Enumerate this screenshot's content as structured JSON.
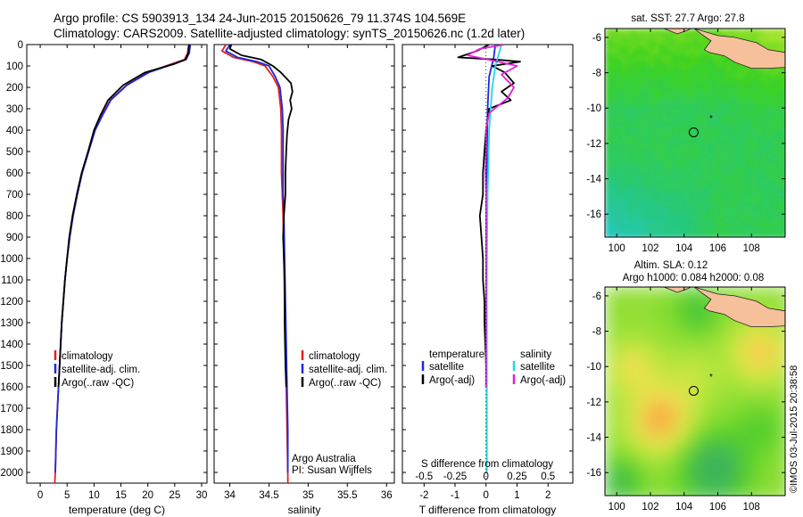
{
  "header": {
    "line1": "Argo profile: CS 5903913_134 24-Jun-2015 20150626_79 11.374S 104.569E",
    "line2": "Climatology: CARS2009. Satellite-adjusted climatology: synTS_20150626.nc (1.2d later)"
  },
  "credit": "©IMOS 03-Jul-2015 20:38:58",
  "colors": {
    "climatology": "#e0201c",
    "satellite": "#1c28e0",
    "argo": "#000000",
    "sat_salinity": "#22d8e8",
    "argo_salinity": "#e020d8",
    "land": "#f5c09a"
  },
  "chart_data": [
    {
      "type": "line",
      "xlabel": "temperature (deg C)",
      "ylabel": "",
      "xlim": [
        -2.5,
        31
      ],
      "ylim": [
        2050,
        0
      ],
      "xticks": [
        0,
        5,
        10,
        15,
        20,
        25,
        30
      ],
      "yticks": [
        0,
        100,
        200,
        300,
        400,
        500,
        600,
        700,
        800,
        900,
        1000,
        1100,
        1200,
        1300,
        1400,
        1500,
        1600,
        1700,
        1800,
        1900,
        2000
      ],
      "legend": [
        "climatology",
        "satellite-adj. clim.",
        "Argo(..raw -QC)"
      ],
      "legend_position": "lower-right",
      "series": [
        {
          "name": "climatology",
          "color": "#e0201c",
          "points": [
            [
              27.6,
              0
            ],
            [
              27.4,
              40
            ],
            [
              26.8,
              70
            ],
            [
              24.5,
              90
            ],
            [
              20,
              130
            ],
            [
              16,
              190
            ],
            [
              13,
              260
            ],
            [
              11.5,
              330
            ],
            [
              10.2,
              400
            ],
            [
              9,
              500
            ],
            [
              7.8,
              600
            ],
            [
              6.9,
              700
            ],
            [
              6.1,
              800
            ],
            [
              5.5,
              900
            ],
            [
              5,
              1000
            ],
            [
              4.6,
              1100
            ],
            [
              4.3,
              1200
            ],
            [
              4,
              1300
            ],
            [
              3.8,
              1400
            ],
            [
              3.6,
              1500
            ],
            [
              3.4,
              1600
            ],
            [
              3.2,
              1700
            ],
            [
              3.0,
              1800
            ],
            [
              2.9,
              1900
            ],
            [
              2.8,
              2000
            ],
            [
              2.7,
              2050
            ]
          ]
        },
        {
          "name": "satellite-adj. clim.",
          "color": "#1c28e0",
          "points": [
            [
              27.9,
              0
            ],
            [
              27.7,
              40
            ],
            [
              27.1,
              70
            ],
            [
              24.8,
              90
            ],
            [
              20.2,
              130
            ],
            [
              16.1,
              190
            ],
            [
              13.1,
              260
            ],
            [
              11.6,
              330
            ],
            [
              10.2,
              400
            ],
            [
              9,
              500
            ],
            [
              7.8,
              600
            ],
            [
              6.9,
              700
            ],
            [
              6.1,
              800
            ],
            [
              5.5,
              900
            ],
            [
              5,
              1000
            ],
            [
              4.6,
              1100
            ],
            [
              4.3,
              1200
            ],
            [
              4,
              1300
            ],
            [
              3.8,
              1400
            ],
            [
              3.6,
              1500
            ],
            [
              3.4,
              1600
            ],
            [
              3.2,
              1700
            ],
            [
              3.0,
              1800
            ],
            [
              2.9,
              1900
            ],
            [
              2.8,
              2000
            ]
          ]
        },
        {
          "name": "Argo(..raw -QC)",
          "color": "#000000",
          "points": [
            [
              27.7,
              0
            ],
            [
              27.5,
              40
            ],
            [
              27,
              70
            ],
            [
              25,
              90
            ],
            [
              19.5,
              130
            ],
            [
              15.4,
              190
            ],
            [
              12.6,
              260
            ],
            [
              11.2,
              330
            ],
            [
              10,
              400
            ],
            [
              8.9,
              500
            ],
            [
              7.7,
              600
            ],
            [
              6.8,
              700
            ],
            [
              6,
              800
            ],
            [
              5.4,
              900
            ],
            [
              5,
              1000
            ],
            [
              4.6,
              1100
            ],
            [
              4.3,
              1200
            ],
            [
              4,
              1300
            ],
            [
              3.8,
              1400
            ],
            [
              3.6,
              1500
            ],
            [
              3.4,
              1600
            ]
          ]
        }
      ]
    },
    {
      "type": "line",
      "xlabel": "salinity",
      "ylabel": "",
      "xlim": [
        33.8,
        36.1
      ],
      "ylim": [
        2050,
        0
      ],
      "xticks": [
        34,
        34.5,
        35,
        35.5,
        36
      ],
      "legend": [
        "climatology",
        "satellite-adj. clim.",
        "Argo(..raw -QC)"
      ],
      "legend_position": "lower-right",
      "annotation": [
        "Argo Australia",
        "PI: Susan Wijffels"
      ],
      "series": [
        {
          "name": "climatology",
          "color": "#e0201c",
          "points": [
            [
              33.95,
              0
            ],
            [
              33.9,
              30
            ],
            [
              34.05,
              60
            ],
            [
              34.3,
              80
            ],
            [
              34.45,
              100
            ],
            [
              34.55,
              150
            ],
            [
              34.62,
              200
            ],
            [
              34.65,
              300
            ],
            [
              34.66,
              400
            ],
            [
              34.66,
              500
            ],
            [
              34.66,
              600
            ],
            [
              34.67,
              700
            ],
            [
              34.68,
              800
            ],
            [
              34.69,
              1000
            ],
            [
              34.7,
              1200
            ],
            [
              34.71,
              1400
            ],
            [
              34.72,
              1600
            ],
            [
              34.73,
              1800
            ],
            [
              34.74,
              2000
            ],
            [
              34.74,
              2050
            ]
          ]
        },
        {
          "name": "satellite-adj. clim.",
          "color": "#1c28e0",
          "points": [
            [
              34.0,
              0
            ],
            [
              33.95,
              30
            ],
            [
              34.1,
              60
            ],
            [
              34.35,
              80
            ],
            [
              34.5,
              100
            ],
            [
              34.58,
              150
            ],
            [
              34.64,
              200
            ],
            [
              34.67,
              300
            ],
            [
              34.68,
              400
            ],
            [
              34.68,
              500
            ],
            [
              34.68,
              600
            ],
            [
              34.68,
              700
            ],
            [
              34.69,
              800
            ],
            [
              34.7,
              1000
            ],
            [
              34.71,
              1200
            ],
            [
              34.72,
              1400
            ],
            [
              34.73,
              1600
            ],
            [
              34.74,
              1800
            ],
            [
              34.74,
              2000
            ]
          ]
        },
        {
          "name": "Argo(..raw -QC)",
          "color": "#000000",
          "points": [
            [
              34.02,
              0
            ],
            [
              34.0,
              20
            ],
            [
              34.15,
              50
            ],
            [
              34.4,
              70
            ],
            [
              34.5,
              90
            ],
            [
              34.55,
              100
            ],
            [
              34.65,
              130
            ],
            [
              34.78,
              180
            ],
            [
              34.8,
              220
            ],
            [
              34.77,
              260
            ],
            [
              34.79,
              300
            ],
            [
              34.75,
              350
            ],
            [
              34.73,
              420
            ],
            [
              34.72,
              500
            ],
            [
              34.71,
              600
            ],
            [
              34.71,
              700
            ],
            [
              34.69,
              800
            ],
            [
              34.68,
              900
            ],
            [
              34.69,
              1000
            ],
            [
              34.7,
              1100
            ],
            [
              34.7,
              1300
            ],
            [
              34.71,
              1500
            ],
            [
              34.72,
              1600
            ]
          ]
        }
      ]
    },
    {
      "type": "line",
      "xlabel": "T difference from climatology",
      "xlabel2": "S difference from climatology",
      "xlim": [
        -2.7,
        2.8
      ],
      "ylim": [
        2050,
        0
      ],
      "xticks": [
        -2,
        -1,
        0,
        1,
        2
      ],
      "xticks2": [
        "-0.5",
        "-0.25",
        "0",
        "0.25",
        "0.5"
      ],
      "xticks2_at": [
        -2,
        -1,
        0,
        1,
        2
      ],
      "legend_left": {
        "title": "temperature",
        "items": [
          "satellite",
          "Argo(-adj)"
        ]
      },
      "legend_right": {
        "title": "salinity",
        "items": [
          "satellite",
          "Argo(-adj)"
        ]
      },
      "series": [
        {
          "name": "satellite",
          "color": "#1c28e0",
          "points": [
            [
              0.3,
              0
            ],
            [
              0.25,
              60
            ],
            [
              0.1,
              150
            ],
            [
              0.05,
              300
            ],
            [
              0.03,
              500
            ],
            [
              0.02,
              800
            ],
            [
              0.02,
              1200
            ],
            [
              0.02,
              1600
            ],
            [
              0.02,
              2000
            ]
          ]
        },
        {
          "name": "Argo(-adj)",
          "color": "#000000",
          "points": [
            [
              0.1,
              0
            ],
            [
              -0.3,
              30
            ],
            [
              -0.9,
              60
            ],
            [
              0.3,
              70
            ],
            [
              1.1,
              80
            ],
            [
              0.2,
              100
            ],
            [
              0.6,
              130
            ],
            [
              0.9,
              180
            ],
            [
              0.5,
              220
            ],
            [
              0.8,
              260
            ],
            [
              0.1,
              300
            ],
            [
              0.0,
              400
            ],
            [
              -0.05,
              500
            ],
            [
              -0.1,
              600
            ],
            [
              -0.1,
              700
            ],
            [
              -0.2,
              800
            ],
            [
              -0.15,
              900
            ],
            [
              -0.1,
              1000
            ],
            [
              -0.1,
              1100
            ],
            [
              -0.05,
              1200
            ],
            [
              -0.05,
              1300
            ],
            [
              0.0,
              1500
            ],
            [
              0.0,
              1600
            ]
          ]
        },
        {
          "name": "satellite",
          "color": "#22d8e8",
          "points": [
            [
              0.5,
              0
            ],
            [
              0.4,
              50
            ],
            [
              0.3,
              100
            ],
            [
              0.2,
              200
            ],
            [
              0.1,
              400
            ],
            [
              0.05,
              700
            ],
            [
              0.03,
              1000
            ],
            [
              0.02,
              1300
            ],
            [
              0.02,
              1600
            ],
            [
              0.02,
              2000
            ]
          ]
        },
        {
          "name": "Argo(-adj)",
          "color": "#e020d8",
          "points": [
            [
              0.6,
              0
            ],
            [
              -0.2,
              20
            ],
            [
              -0.6,
              50
            ],
            [
              0.4,
              80
            ],
            [
              1.0,
              100
            ],
            [
              0.5,
              140
            ],
            [
              0.9,
              200
            ],
            [
              0.7,
              250
            ],
            [
              0.1,
              320
            ],
            [
              0.0,
              400
            ],
            [
              0.0,
              500
            ],
            [
              -0.02,
              600
            ],
            [
              0.0,
              700
            ],
            [
              0.0,
              900
            ],
            [
              0.0,
              1100
            ],
            [
              0.0,
              1600
            ]
          ]
        }
      ]
    },
    {
      "type": "heatmap",
      "title": "sat. SST: 27.7 Argo: 27.8",
      "xlim": [
        99.3,
        110
      ],
      "ylim": [
        -17.3,
        -5.5
      ],
      "xticks": [
        100,
        102,
        104,
        106,
        108
      ],
      "yticks": [
        -6,
        -8,
        -10,
        -12,
        -14,
        -16
      ],
      "land_color": "#f5c09a",
      "profile_position": [
        104.569,
        -11.374
      ],
      "prev_position": [
        105.6,
        -10.5
      ]
    },
    {
      "type": "heatmap",
      "title": "Altim. SLA: 0.12",
      "subtitle": "Argo h1000: 0.084 h2000: 0.08",
      "xlim": [
        99.3,
        110
      ],
      "ylim": [
        -17.3,
        -5.5
      ],
      "xticks": [
        100,
        102,
        104,
        106,
        108
      ],
      "yticks": [
        -6,
        -8,
        -10,
        -12,
        -14,
        -16
      ],
      "land_color": "#f5c09a",
      "profile_position": [
        104.569,
        -11.374
      ],
      "prev_position": [
        105.6,
        -10.5
      ]
    }
  ]
}
